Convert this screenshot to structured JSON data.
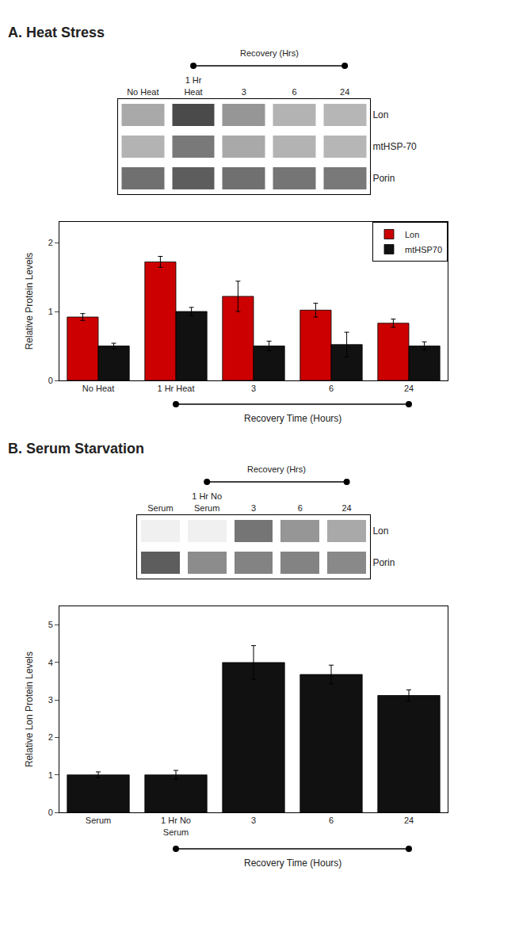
{
  "chart_data": [
    {
      "type": "heatmap",
      "title": "A. Heat Stress",
      "categories": [
        "No Heat",
        "1 Hr\nHeat",
        "3",
        "6",
        "24"
      ],
      "rows": [
        "Lon",
        "mtHSP-70",
        "Porin"
      ],
      "cells": [
        [
          0.45,
          0.95,
          0.55,
          0.4,
          0.38
        ],
        [
          0.4,
          0.7,
          0.45,
          0.4,
          0.38
        ],
        [
          0.75,
          0.85,
          0.75,
          0.72,
          0.7
        ]
      ],
      "zlim": [
        0,
        1
      ],
      "color": "#404040",
      "annotations": [
        "Recovery (Hrs)"
      ]
    },
    {
      "type": "bar",
      "categories": [
        "No Heat",
        "1 Hr Heat",
        "3",
        "6",
        "24"
      ],
      "series": [
        {
          "name": "Lon",
          "color": "#CC0000",
          "values": [
            0.92,
            1.72,
            1.22,
            1.02,
            0.83
          ],
          "errors": [
            0.05,
            0.08,
            0.22,
            0.1,
            0.06
          ]
        },
        {
          "name": "mtHSP70",
          "color": "#111111",
          "values": [
            0.5,
            1.0,
            0.5,
            0.52,
            0.5
          ],
          "errors": [
            0.04,
            0.06,
            0.07,
            0.18,
            0.06
          ]
        }
      ],
      "ylabel": "Relative Protein Levels",
      "ylim": [
        0,
        2.3
      ],
      "yticks": [
        0,
        1,
        2
      ],
      "grid": false,
      "legend": "upper right",
      "annotations": [
        "Recovery Time (Hours)"
      ]
    },
    {
      "type": "heatmap",
      "title": "B. Serum Starvation",
      "categories": [
        "Serum",
        "1 Hr No\nSerum",
        "3",
        "6",
        "24"
      ],
      "rows": [
        "Lon",
        "Porin"
      ],
      "cells": [
        [
          0.08,
          0.08,
          0.72,
          0.55,
          0.45
        ],
        [
          0.85,
          0.6,
          0.65,
          0.65,
          0.62
        ]
      ],
      "zlim": [
        0,
        1
      ],
      "color": "#404040",
      "annotations": [
        "Recovery (Hrs)"
      ]
    },
    {
      "type": "bar",
      "categories": [
        "Serum",
        "1 Hr No\nSerum",
        "3",
        "6",
        "24"
      ],
      "values": [
        1.0,
        1.0,
        4.0,
        3.68,
        3.12
      ],
      "errors": [
        0.08,
        0.12,
        0.45,
        0.25,
        0.15
      ],
      "color": "#111111",
      "ylabel": "Relative Lon Protein Levels",
      "ylim": [
        0,
        5.5
      ],
      "yticks": [
        0,
        1,
        2,
        3,
        4,
        5
      ],
      "grid": false,
      "annotations": [
        "Recovery Time (Hours)"
      ]
    }
  ]
}
